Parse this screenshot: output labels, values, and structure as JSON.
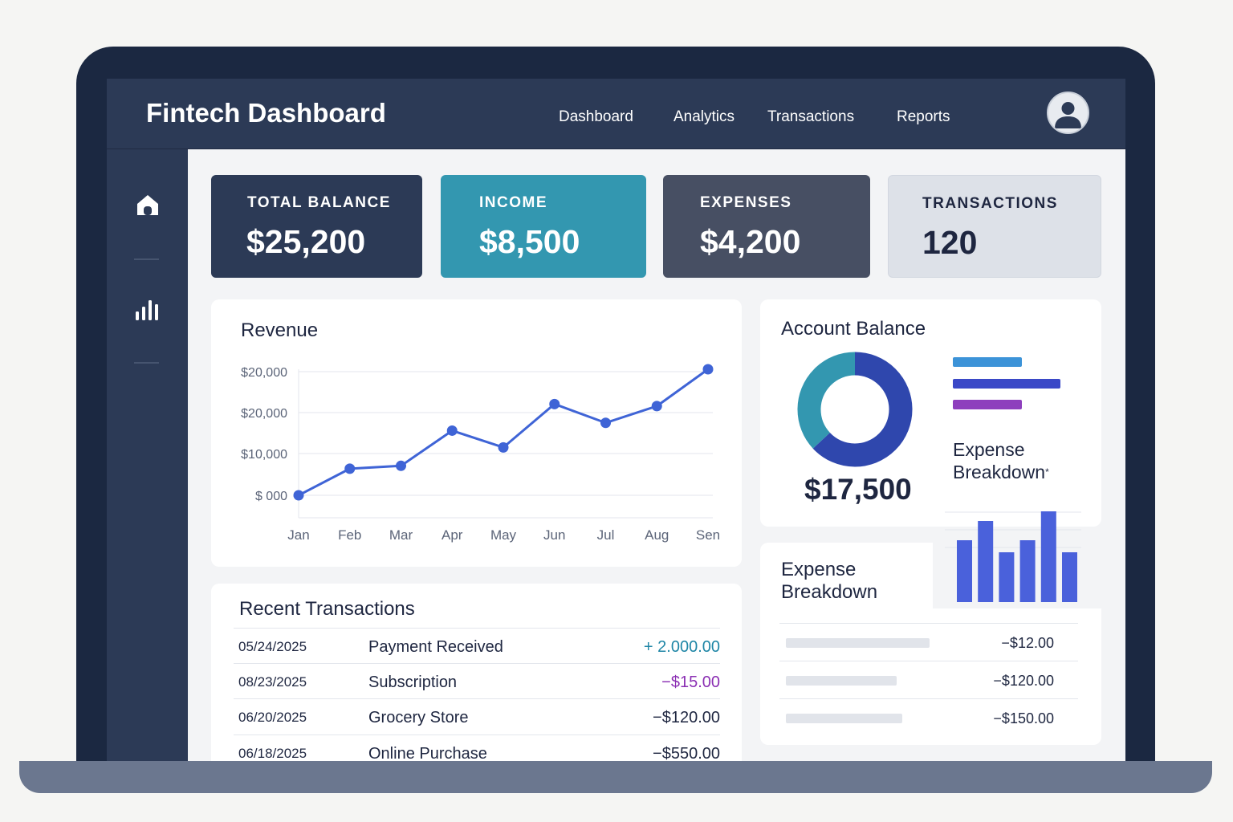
{
  "app": {
    "title": "Fintech Dashboard"
  },
  "nav": {
    "items": [
      {
        "label": "Dashboard"
      },
      {
        "label": "Analytics"
      },
      {
        "label": "Transactions"
      },
      {
        "label": "Reports"
      }
    ]
  },
  "sidebar": {
    "icons": [
      "home-icon",
      "bar-chart-icon"
    ]
  },
  "stats": [
    {
      "label": "TOTAL BALANCE",
      "value": "$25,200",
      "bg": "#2c3a56",
      "color": "#ffffff"
    },
    {
      "label": "INCOME",
      "value": "$8,500",
      "bg": "#3397b0",
      "color": "#ffffff"
    },
    {
      "label": "EXPENSES",
      "value": "$4,200",
      "bg": "#474f63",
      "color": "#ffffff"
    },
    {
      "label": "TRANSACTIONS",
      "value": "120",
      "bg": "#dde1e8",
      "color": "#1e2640"
    }
  ],
  "revenue": {
    "title": "Revenue",
    "chart_data": {
      "type": "line",
      "title": "Revenue",
      "categories": [
        "Jan",
        "Feb",
        "Mar",
        "Apr",
        "May",
        "Jun",
        "Jul",
        "Aug",
        "Sen"
      ],
      "y_tick_labels": [
        "$20,000",
        "$20,000",
        "$10,000",
        "$ 000"
      ],
      "series": [
        {
          "values": [
            0,
            6500,
            7200,
            15800,
            11700,
            22300,
            17700,
            21800,
            30800
          ]
        }
      ],
      "ylim": [
        0,
        30800
      ],
      "grid": true,
      "line_color": "#3f64d6"
    }
  },
  "account_balance": {
    "title": "Account Balance",
    "amount": "$17,500",
    "donut": [
      {
        "value": 0.63,
        "color": "#2f47ad"
      },
      {
        "value": 0.37,
        "color": "#3397b0"
      }
    ],
    "legend_bars": [
      {
        "value": 0.64,
        "color": "#3c93d8"
      },
      {
        "value": 1.0,
        "color": "#3a48c7"
      },
      {
        "value": 0.64,
        "color": "#8e3fbd"
      }
    ],
    "breakdown_title": "Expense Breakdown",
    "breakdown_mark": "*"
  },
  "expense_breakdown_chart": {
    "chart_data": {
      "type": "bar",
      "values": [
        77,
        101,
        62,
        77,
        113,
        62
      ],
      "color": "#4a61db"
    }
  },
  "expense_breakdown": {
    "title_line1": "Expense",
    "title_line2": "Breakdown",
    "rows": [
      {
        "amount": "−$12.00",
        "fill": 0.48
      },
      {
        "amount": "−$120.00",
        "fill": 0.37
      },
      {
        "amount": "−$150.00",
        "fill": 0.39
      }
    ]
  },
  "transactions": {
    "title": "Recent Transactions",
    "rows": [
      {
        "date": "05/24/2025",
        "description": "Payment Received",
        "amount": "+ 2.000.00",
        "color": "#1f86a6"
      },
      {
        "date": "08/23/2025",
        "description": "Subscription",
        "amount": "−$15.00",
        "color": "#8b2fb3"
      },
      {
        "date": "06/20/2025",
        "description": "Grocery Store",
        "amount": "−$120.00",
        "color": "#1e2640"
      },
      {
        "date": "06/18/2025",
        "description": "Online Purchase",
        "amount": "−$550.00",
        "color": "#1e2640"
      }
    ]
  }
}
